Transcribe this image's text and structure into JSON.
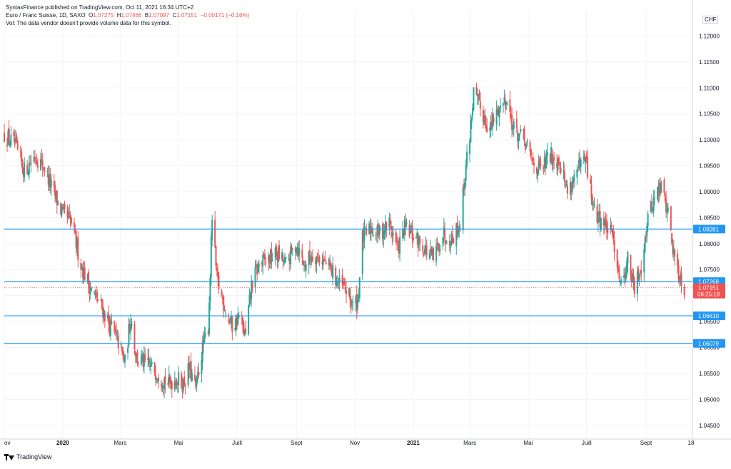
{
  "header": {
    "published": "SyntaxFinance published on TradingView.com, Oct 11, 2021 16:34 UTC+2",
    "symbol": "Euro / Franc Suisse, 1D, SAXO",
    "open_label": "O",
    "open": "1.07275",
    "high_label": "H",
    "high": "1.07466",
    "low_label": "B",
    "low": "1.07097",
    "close_label": "C",
    "close": "1.07151",
    "change": "−0.00171 (−0.16%)",
    "volume_note": "Vol: The data vendor doesn't provide volume data for this symbol."
  },
  "currency": "CHF",
  "footer": {
    "brand": "TradingView"
  },
  "colors": {
    "up": "#26a69a",
    "down": "#ef5350",
    "hline": "#2196f3",
    "grid": "#f0f3fa",
    "price_tag": "#ef5350"
  },
  "chart_data": {
    "type": "candlestick",
    "symbol": "Euro / Franc Suisse",
    "timeframe": "1D",
    "x_range": [
      "2019-11-01",
      "2021-10-18"
    ],
    "ylim": [
      1.0425,
      1.125
    ],
    "y_ticks": [
      1.045,
      1.05,
      1.055,
      1.06,
      1.065,
      1.07,
      1.075,
      1.08,
      1.085,
      1.09,
      1.095,
      1.1,
      1.105,
      1.11,
      1.115,
      1.12
    ],
    "y_tick_labels": [
      "1.04500",
      "1.05000",
      "1.05500",
      "1.06000",
      "1.06500",
      "1.07000",
      "1.07500",
      "1.08000",
      "1.08500",
      "1.09000",
      "1.09500",
      "1.10000",
      "1.10500",
      "1.11000",
      "1.11500",
      "1.12000"
    ],
    "x_ticks": [
      {
        "date": "2019-11-01",
        "label": "ov"
      },
      {
        "date": "2020-01-01",
        "label": "2020"
      },
      {
        "date": "2020-03-01",
        "label": "Mars"
      },
      {
        "date": "2020-05-01",
        "label": "Mai"
      },
      {
        "date": "2020-07-01",
        "label": "Juill"
      },
      {
        "date": "2020-09-01",
        "label": "Sept"
      },
      {
        "date": "2020-11-01",
        "label": "Nov"
      },
      {
        "date": "2021-01-01",
        "label": "2021"
      },
      {
        "date": "2021-03-01",
        "label": "Mars"
      },
      {
        "date": "2021-05-01",
        "label": "Mai"
      },
      {
        "date": "2021-07-01",
        "label": "Juill"
      },
      {
        "date": "2021-09-01",
        "label": "Sept"
      },
      {
        "date": "2021-10-18",
        "label": "18"
      }
    ],
    "close_path": [
      [
        "2019-11-01",
        1.101
      ],
      [
        "2019-11-12",
        1.099
      ],
      [
        "2019-11-22",
        1.094
      ],
      [
        "2019-12-03",
        1.097
      ],
      [
        "2019-12-12",
        1.095
      ],
      [
        "2019-12-20",
        1.091
      ],
      [
        "2019-12-31",
        1.086
      ],
      [
        "2020-01-10",
        1.084
      ],
      [
        "2020-01-20",
        1.076
      ],
      [
        "2020-01-31",
        1.071
      ],
      [
        "2020-02-10",
        1.068
      ],
      [
        "2020-02-20",
        1.064
      ],
      [
        "2020-02-28",
        1.061
      ],
      [
        "2020-03-06",
        1.057
      ],
      [
        "2020-03-12",
        1.066
      ],
      [
        "2020-03-18",
        1.058
      ],
      [
        "2020-03-26",
        1.057
      ],
      [
        "2020-04-03",
        1.056
      ],
      [
        "2020-04-10",
        1.055
      ],
      [
        "2020-04-20",
        1.053
      ],
      [
        "2020-04-28",
        1.054
      ],
      [
        "2020-05-06",
        1.053
      ],
      [
        "2020-05-12",
        1.056
      ],
      [
        "2020-05-19",
        1.052
      ],
      [
        "2020-05-25",
        1.059
      ],
      [
        "2020-06-01",
        1.064
      ],
      [
        "2020-06-05",
        1.085
      ],
      [
        "2020-06-10",
        1.073
      ],
      [
        "2020-06-18",
        1.068
      ],
      [
        "2020-06-26",
        1.064
      ],
      [
        "2020-07-03",
        1.066
      ],
      [
        "2020-07-10",
        1.062
      ],
      [
        "2020-07-16",
        1.072
      ],
      [
        "2020-07-24",
        1.076
      ],
      [
        "2020-08-03",
        1.077
      ],
      [
        "2020-08-12",
        1.078
      ],
      [
        "2020-08-21",
        1.076
      ],
      [
        "2020-09-01",
        1.08
      ],
      [
        "2020-09-09",
        1.076
      ],
      [
        "2020-09-18",
        1.078
      ],
      [
        "2020-09-28",
        1.077
      ],
      [
        "2020-10-07",
        1.075
      ],
      [
        "2020-10-16",
        1.072
      ],
      [
        "2020-10-23",
        1.071
      ],
      [
        "2020-10-30",
        1.068
      ],
      [
        "2020-11-04",
        1.069
      ],
      [
        "2020-11-09",
        1.081
      ],
      [
        "2020-11-18",
        1.083
      ],
      [
        "2020-11-27",
        1.082
      ],
      [
        "2020-12-07",
        1.084
      ],
      [
        "2020-12-16",
        1.079
      ],
      [
        "2020-12-23",
        1.083
      ],
      [
        "2021-01-04",
        1.081
      ],
      [
        "2021-01-13",
        1.079
      ],
      [
        "2021-01-22",
        1.077
      ],
      [
        "2021-02-01",
        1.082
      ],
      [
        "2021-02-10",
        1.081
      ],
      [
        "2021-02-19",
        1.084
      ],
      [
        "2021-02-25",
        1.095
      ],
      [
        "2021-03-01",
        1.101
      ],
      [
        "2021-03-05",
        1.109
      ],
      [
        "2021-03-12",
        1.106
      ],
      [
        "2021-03-22",
        1.102
      ],
      [
        "2021-03-31",
        1.106
      ],
      [
        "2021-04-08",
        1.108
      ],
      [
        "2021-04-16",
        1.102
      ],
      [
        "2021-04-26",
        1.1
      ],
      [
        "2021-05-05",
        1.096
      ],
      [
        "2021-05-14",
        1.094
      ],
      [
        "2021-05-24",
        1.097
      ],
      [
        "2021-06-03",
        1.096
      ],
      [
        "2021-06-11",
        1.09
      ],
      [
        "2021-06-21",
        1.094
      ],
      [
        "2021-06-30",
        1.096
      ],
      [
        "2021-07-09",
        1.086
      ],
      [
        "2021-07-19",
        1.084
      ],
      [
        "2021-07-29",
        1.081
      ],
      [
        "2021-08-06",
        1.072
      ],
      [
        "2021-08-13",
        1.077
      ],
      [
        "2021-08-20",
        1.071
      ],
      [
        "2021-08-27",
        1.076
      ],
      [
        "2021-09-03",
        1.085
      ],
      [
        "2021-09-10",
        1.089
      ],
      [
        "2021-09-17",
        1.091
      ],
      [
        "2021-09-24",
        1.086
      ],
      [
        "2021-09-30",
        1.078
      ],
      [
        "2021-10-06",
        1.074
      ],
      [
        "2021-10-11",
        1.0715
      ]
    ],
    "horizontal_levels": [
      1.08281,
      1.07268,
      1.0661,
      1.06079
    ],
    "level_labels": [
      "1.08281",
      "1.07268",
      "1.06610",
      "1.06079"
    ],
    "last_price": 1.07151,
    "last_price_label": "1.07151",
    "countdown": "06:25:18",
    "grid": true
  }
}
